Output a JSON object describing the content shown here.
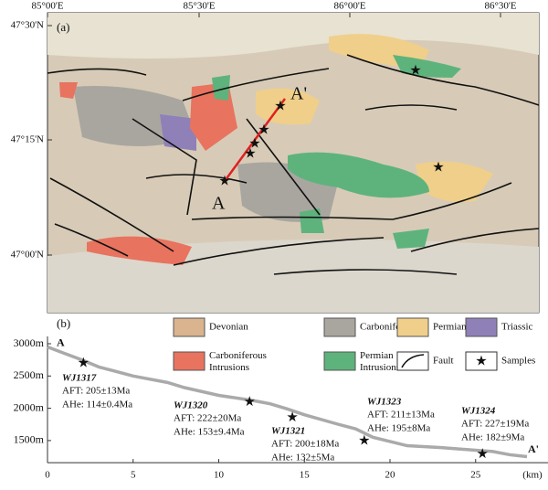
{
  "map": {
    "panel_label": "(a)",
    "lon_ticks": [
      "85°00'E",
      "85°30'E",
      "86°00'E",
      "86°30'E"
    ],
    "lat_ticks": [
      "47°30'N",
      "47°15'N",
      "47°00'N"
    ],
    "profile_start": "A",
    "profile_end": "A'"
  },
  "legend": [
    "Devonian",
    "Carboniferous",
    "Permian",
    "Triassic",
    "Carboniferous Intrusions",
    "Permian Intrusions",
    "Fault",
    "Samples"
  ],
  "profile": {
    "panel_label": "(b)",
    "start": "A",
    "end": "A'",
    "x_unit": "(km)",
    "xlim": [
      0,
      30
    ],
    "xticks": [
      0,
      5,
      10,
      15,
      20,
      25
    ],
    "ylim": [
      1200,
      3000
    ],
    "yticks": [
      {
        "value": 3000,
        "label": "3000m"
      },
      {
        "value": 2500,
        "label": "2500m"
      },
      {
        "value": 2000,
        "label": "2000m"
      },
      {
        "value": 1500,
        "label": "1500m"
      }
    ],
    "distance": [
      0,
      1,
      2,
      3,
      5,
      7,
      8,
      10,
      12,
      13,
      14,
      15,
      17,
      18,
      19,
      21,
      23,
      25,
      26,
      27,
      28
    ],
    "elevation": [
      2950,
      2850,
      2750,
      2640,
      2500,
      2400,
      2320,
      2200,
      2120,
      2070,
      1990,
      1900,
      1750,
      1680,
      1550,
      1420,
      1390,
      1350,
      1330,
      1280,
      1250
    ],
    "samples": [
      {
        "name": "WJ1317",
        "aft": "AFT: 205±13Ma",
        "ahe": "AHe: 114±0.4Ma",
        "distance": 2.1,
        "elevation": 2700
      },
      {
        "name": "WJ1320",
        "aft": "AFT: 222±20Ma",
        "ahe": "AHe: 153±9.4Ma",
        "distance": 11.8,
        "elevation": 2100
      },
      {
        "name": "WJ1321",
        "aft": "AFT: 200±18Ma",
        "ahe": "AHe: 132±5Ma",
        "distance": 14.3,
        "elevation": 1860
      },
      {
        "name": "WJ1323",
        "aft": "AFT: 211±13Ma",
        "ahe": "AHe: 195±8Ma",
        "distance": 18.5,
        "elevation": 1500
      },
      {
        "name": "WJ1324",
        "aft": "AFT: 227±19Ma",
        "ahe": "AHe: 182±9Ma",
        "distance": 25.4,
        "elevation": 1290
      }
    ]
  }
}
